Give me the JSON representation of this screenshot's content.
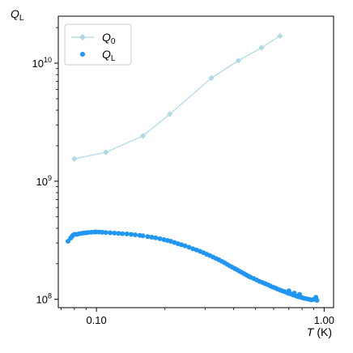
{
  "chart_data": {
    "type": "scatter",
    "xscale": "log",
    "yscale": "log",
    "xlim": [
      0.068,
      1.1
    ],
    "ylim": [
      85000000,
      25000000000
    ],
    "grid": false,
    "legend": "top-left",
    "ylabel": {
      "main": "Q",
      "sub": "L"
    },
    "xlabel": {
      "main": "T",
      "unit": "(K)"
    },
    "x_ticks": [
      {
        "value": 0.1,
        "label": "0.10"
      },
      {
        "value": 1.0,
        "label": "1.00"
      }
    ],
    "y_ticks": [
      {
        "value": 100000000,
        "base": "10",
        "exp": "8"
      },
      {
        "value": 1000000000,
        "base": "10",
        "exp": "9"
      },
      {
        "value": 10000000000,
        "base": "10",
        "exp": "10"
      }
    ],
    "series": [
      {
        "name": {
          "main": "Q",
          "sub": "0"
        },
        "style": "line-diamond",
        "color": "#add8e6",
        "points": [
          [
            0.08,
            1550000000
          ],
          [
            0.11,
            1760000000
          ],
          [
            0.16,
            2420000000
          ],
          [
            0.21,
            3700000000
          ],
          [
            0.32,
            7500000000
          ],
          [
            0.42,
            10500000000
          ],
          [
            0.53,
            13500000000
          ],
          [
            0.64,
            17000000000
          ]
        ]
      },
      {
        "name": {
          "main": "Q",
          "sub": "L"
        },
        "style": "markers",
        "color": "#2196f3",
        "points": [
          [
            0.075,
            310000000
          ],
          [
            0.077,
            330000000
          ],
          [
            0.078,
            340000000
          ],
          [
            0.079,
            350000000
          ],
          [
            0.08,
            355000000
          ],
          [
            0.082,
            355000000
          ],
          [
            0.084,
            360000000
          ],
          [
            0.086,
            362000000
          ],
          [
            0.088,
            365000000
          ],
          [
            0.09,
            366000000
          ],
          [
            0.092,
            368000000
          ],
          [
            0.095,
            370000000
          ],
          [
            0.098,
            372000000
          ],
          [
            0.1,
            372000000
          ],
          [
            0.103,
            371000000
          ],
          [
            0.106,
            370000000
          ],
          [
            0.11,
            368000000
          ],
          [
            0.115,
            366000000
          ],
          [
            0.12,
            364000000
          ],
          [
            0.125,
            362000000
          ],
          [
            0.13,
            360000000
          ],
          [
            0.136,
            358000000
          ],
          [
            0.142,
            355000000
          ],
          [
            0.148,
            352000000
          ],
          [
            0.155,
            348000000
          ],
          [
            0.16,
            345000000
          ],
          [
            0.168,
            340000000
          ],
          [
            0.175,
            336000000
          ],
          [
            0.182,
            332000000
          ],
          [
            0.19,
            326000000
          ],
          [
            0.198,
            320000000
          ],
          [
            0.205,
            315000000
          ],
          [
            0.212,
            310000000
          ],
          [
            0.22,
            303000000
          ],
          [
            0.228,
            296000000
          ],
          [
            0.236,
            290000000
          ],
          [
            0.245,
            284000000
          ],
          [
            0.255,
            276000000
          ],
          [
            0.265,
            268000000
          ],
          [
            0.275,
            262000000
          ],
          [
            0.285,
            255000000
          ],
          [
            0.295,
            248000000
          ],
          [
            0.305,
            241000000
          ],
          [
            0.315,
            235000000
          ],
          [
            0.325,
            228000000
          ],
          [
            0.335,
            222000000
          ],
          [
            0.345,
            216000000
          ],
          [
            0.355,
            210000000
          ],
          [
            0.365,
            204000000
          ],
          [
            0.375,
            198000000
          ],
          [
            0.385,
            192000000
          ],
          [
            0.395,
            187000000
          ],
          [
            0.405,
            182000000
          ],
          [
            0.415,
            178000000
          ],
          [
            0.425,
            173000000
          ],
          [
            0.435,
            169000000
          ],
          [
            0.445,
            165000000
          ],
          [
            0.455,
            161000000
          ],
          [
            0.465,
            157000000
          ],
          [
            0.475,
            154000000
          ],
          [
            0.49,
            150000000
          ],
          [
            0.505,
            146000000
          ],
          [
            0.52,
            142000000
          ],
          [
            0.535,
            139000000
          ],
          [
            0.55,
            136000000
          ],
          [
            0.565,
            133000000
          ],
          [
            0.58,
            130000000
          ],
          [
            0.595,
            127000000
          ],
          [
            0.61,
            125000000
          ],
          [
            0.625,
            122000000
          ],
          [
            0.64,
            120000000
          ],
          [
            0.655,
            118000000
          ],
          [
            0.67,
            116000000
          ],
          [
            0.685,
            114000000
          ],
          [
            0.7,
            112000000
          ],
          [
            0.715,
            111000000
          ],
          [
            0.73,
            109000000
          ],
          [
            0.745,
            108000000
          ],
          [
            0.76,
            106000000
          ],
          [
            0.775,
            105000000
          ],
          [
            0.79,
            104000000
          ],
          [
            0.805,
            103000000
          ],
          [
            0.82,
            102000000
          ],
          [
            0.84,
            101000000
          ],
          [
            0.86,
            100000000
          ],
          [
            0.88,
            99000000
          ],
          [
            0.9,
            100000000
          ],
          [
            0.92,
            104000000
          ],
          [
            0.93,
            98000000
          ],
          [
            0.7,
            118000000
          ],
          [
            0.74,
            113000000
          ],
          [
            0.78,
            110000000
          ]
        ]
      }
    ]
  }
}
